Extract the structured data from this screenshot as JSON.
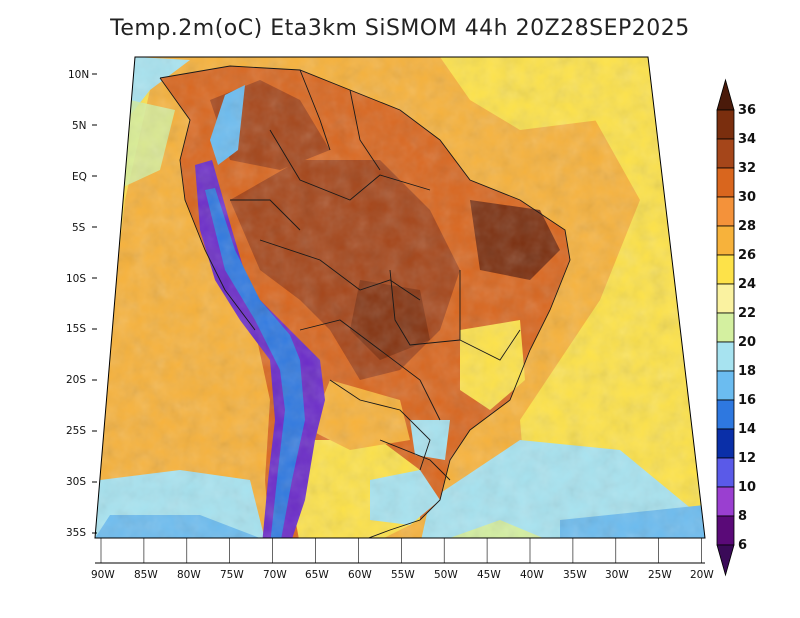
{
  "title": "Temp.2m(oC) Eta3km SiSMOM 44h 20Z28SEP2025",
  "lat_labels": [
    "10N",
    "5N",
    "EQ",
    "5S",
    "10S",
    "15S",
    "20S",
    "25S",
    "30S",
    "35S"
  ],
  "lon_labels": [
    "90W",
    "85W",
    "80W",
    "75W",
    "70W",
    "65W",
    "60W",
    "55W",
    "50W",
    "45W",
    "40W",
    "35W",
    "30W",
    "25W",
    "20W"
  ],
  "colorbar": {
    "levels": [
      "36",
      "34",
      "32",
      "30",
      "28",
      "26",
      "24",
      "22",
      "20",
      "18",
      "16",
      "14",
      "12",
      "10",
      "8",
      "6"
    ],
    "colors": [
      "#4a1a0a",
      "#7a2e0e",
      "#a5461a",
      "#d9661e",
      "#f4923a",
      "#f7b23b",
      "#fde249",
      "#faf2a0",
      "#d4f0a0",
      "#a7e3f0",
      "#6bbcf0",
      "#2e78e0",
      "#0a2fa8",
      "#5a5ae8",
      "#9a3fd0",
      "#5a0a78",
      "#3a0a58"
    ]
  },
  "colors": {
    "ocean_warm": "#f7b23b",
    "ocean_mild": "#fde249",
    "ocean_cool": "#a7e3f0",
    "land_hot": "#a5461a",
    "land_warm": "#d9661e",
    "andes": "#6a2ac8",
    "border": "#1a1a1a"
  }
}
